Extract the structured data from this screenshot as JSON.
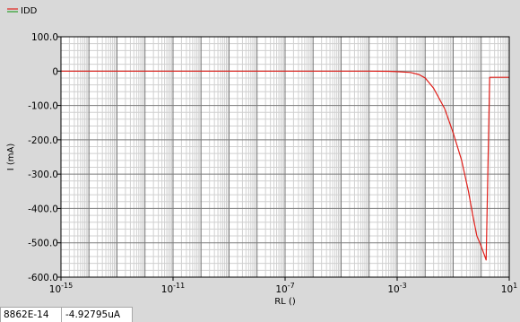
{
  "chart_data": {
    "type": "line",
    "title": "",
    "xlabel": "RL ()",
    "ylabel": "I (mA)",
    "x_scale": "log",
    "xlim": [
      1e-15,
      10
    ],
    "ylim": [
      -600,
      100
    ],
    "grid": true,
    "legend": {
      "position": "top-left",
      "entries": [
        "IDD"
      ]
    },
    "x_ticks": [
      {
        "value": 1e-15,
        "base": "10",
        "exp": "-15"
      },
      {
        "value": 1e-11,
        "base": "10",
        "exp": "-11"
      },
      {
        "value": 1e-07,
        "base": "10",
        "exp": "-7"
      },
      {
        "value": 0.001,
        "base": "10",
        "exp": "-3"
      },
      {
        "value": 10,
        "base": "10",
        "exp": "1"
      }
    ],
    "y_ticks": [
      {
        "value": 100,
        "label": "100.0"
      },
      {
        "value": 0,
        "label": "0"
      },
      {
        "value": -100,
        "label": "-100.0"
      },
      {
        "value": -200,
        "label": "-200.0"
      },
      {
        "value": -300,
        "label": "-300.0"
      },
      {
        "value": -400,
        "label": "-400.0"
      },
      {
        "value": -500,
        "label": "-500.0"
      },
      {
        "value": -600,
        "label": "-600.0"
      }
    ],
    "series": [
      {
        "name": "IDD",
        "color": "#e0201b",
        "x": [
          1e-15,
          1e-10,
          1e-05,
          0.0001,
          0.0005,
          0.001,
          0.003,
          0.006,
          0.01,
          0.02,
          0.05,
          0.1,
          0.2,
          0.35,
          0.5,
          0.7,
          1.0,
          1.5,
          2.0,
          3.0,
          5.0,
          10.0
        ],
        "y": [
          0,
          0,
          0,
          0,
          -0.5,
          -1.5,
          -4,
          -10,
          -20,
          -50,
          -110,
          -180,
          -260,
          -350,
          -420,
          -480,
          -510,
          -550,
          -18,
          -18,
          -18,
          -18
        ]
      }
    ]
  },
  "status": {
    "cursor_x": "8862E-14",
    "cursor_y": "-4.92795uA"
  }
}
